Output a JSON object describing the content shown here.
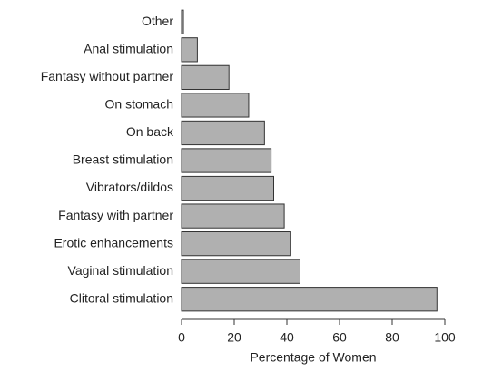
{
  "chart_data": {
    "type": "barh",
    "xlabel": "Percentage of Women",
    "categories": [
      "Other",
      "Anal stimulation",
      "Fantasy without partner",
      "On stomach",
      "On back",
      "Breast stimulation",
      "Vibrators/dildos",
      "Fantasy with partner",
      "Erotic enhancements",
      "Vaginal stimulation",
      "Clitoral stimulation"
    ],
    "values": [
      0.7,
      6,
      18,
      25.5,
      31.5,
      34,
      35,
      39,
      41.5,
      45,
      97
    ],
    "color": "#b0b0b0",
    "xlim": [
      0,
      100
    ],
    "xticks": [
      0,
      20,
      40,
      60,
      80,
      100
    ],
    "grid": false
  }
}
